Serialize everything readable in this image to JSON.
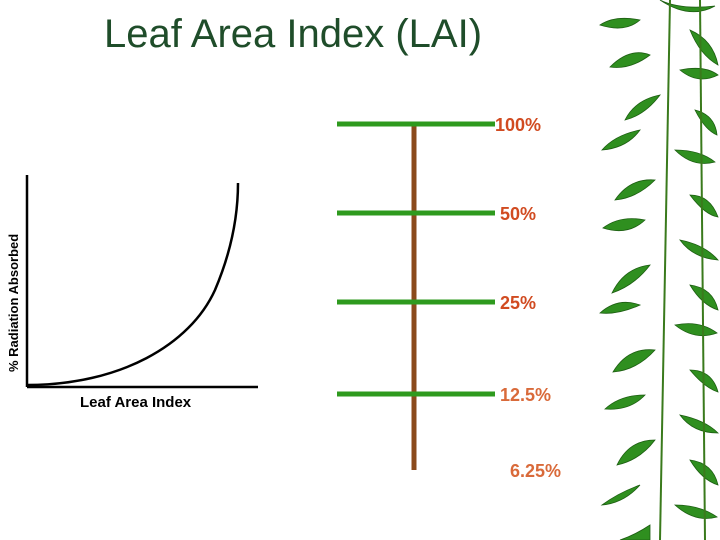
{
  "title": "Leaf Area Index (LAI)",
  "graph": {
    "xlabel": "Leaf Area Index",
    "ylabel": "% Radiation Absorbed"
  },
  "canopy_layers": [
    {
      "label": "100%"
    },
    {
      "label": "50%"
    },
    {
      "label": "25%"
    },
    {
      "label": "12.5%"
    },
    {
      "label": "6.25%"
    }
  ],
  "colors": {
    "title": "#1f4d2a",
    "leaf": "#2e9a1e",
    "stem": "#8b4a1c",
    "percent_label": "#d14b21",
    "bamboo": "#2f8f1f"
  },
  "decoration": {
    "border_art": "bamboo-leaves"
  }
}
